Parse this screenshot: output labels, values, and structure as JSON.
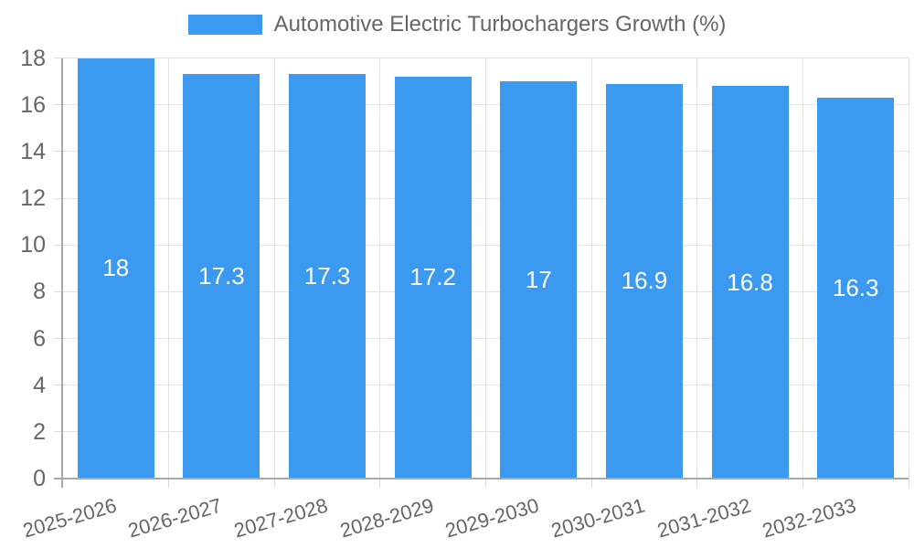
{
  "chart_data": {
    "type": "bar",
    "title": "Automotive Electric Turbochargers Growth (%)",
    "legend_label": "Automotive Electric Turbochargers Growth (%)",
    "legend_position": "top",
    "grid": "on",
    "categories": [
      "2025-2026",
      "2026-2027",
      "2027-2028",
      "2028-2029",
      "2029-2030",
      "2030-2031",
      "2031-2032",
      "2032-2033"
    ],
    "values": [
      18,
      17.3,
      17.3,
      17.2,
      17,
      16.9,
      16.8,
      16.3
    ],
    "value_labels": [
      "18",
      "17.3",
      "17.3",
      "17.2",
      "17",
      "16.9",
      "16.8",
      "16.3"
    ],
    "xlabel": "",
    "ylabel": "",
    "ylim": [
      0,
      18
    ],
    "y_ticks": [
      0,
      2,
      4,
      6,
      8,
      10,
      12,
      14,
      16,
      18
    ],
    "colors": {
      "bar": "#3b9af0",
      "grid": "#e3e3e3",
      "axis": "#a8a8a8",
      "tick_text": "#666666",
      "value_text": "#ffffff",
      "background": "#ffffff"
    }
  }
}
